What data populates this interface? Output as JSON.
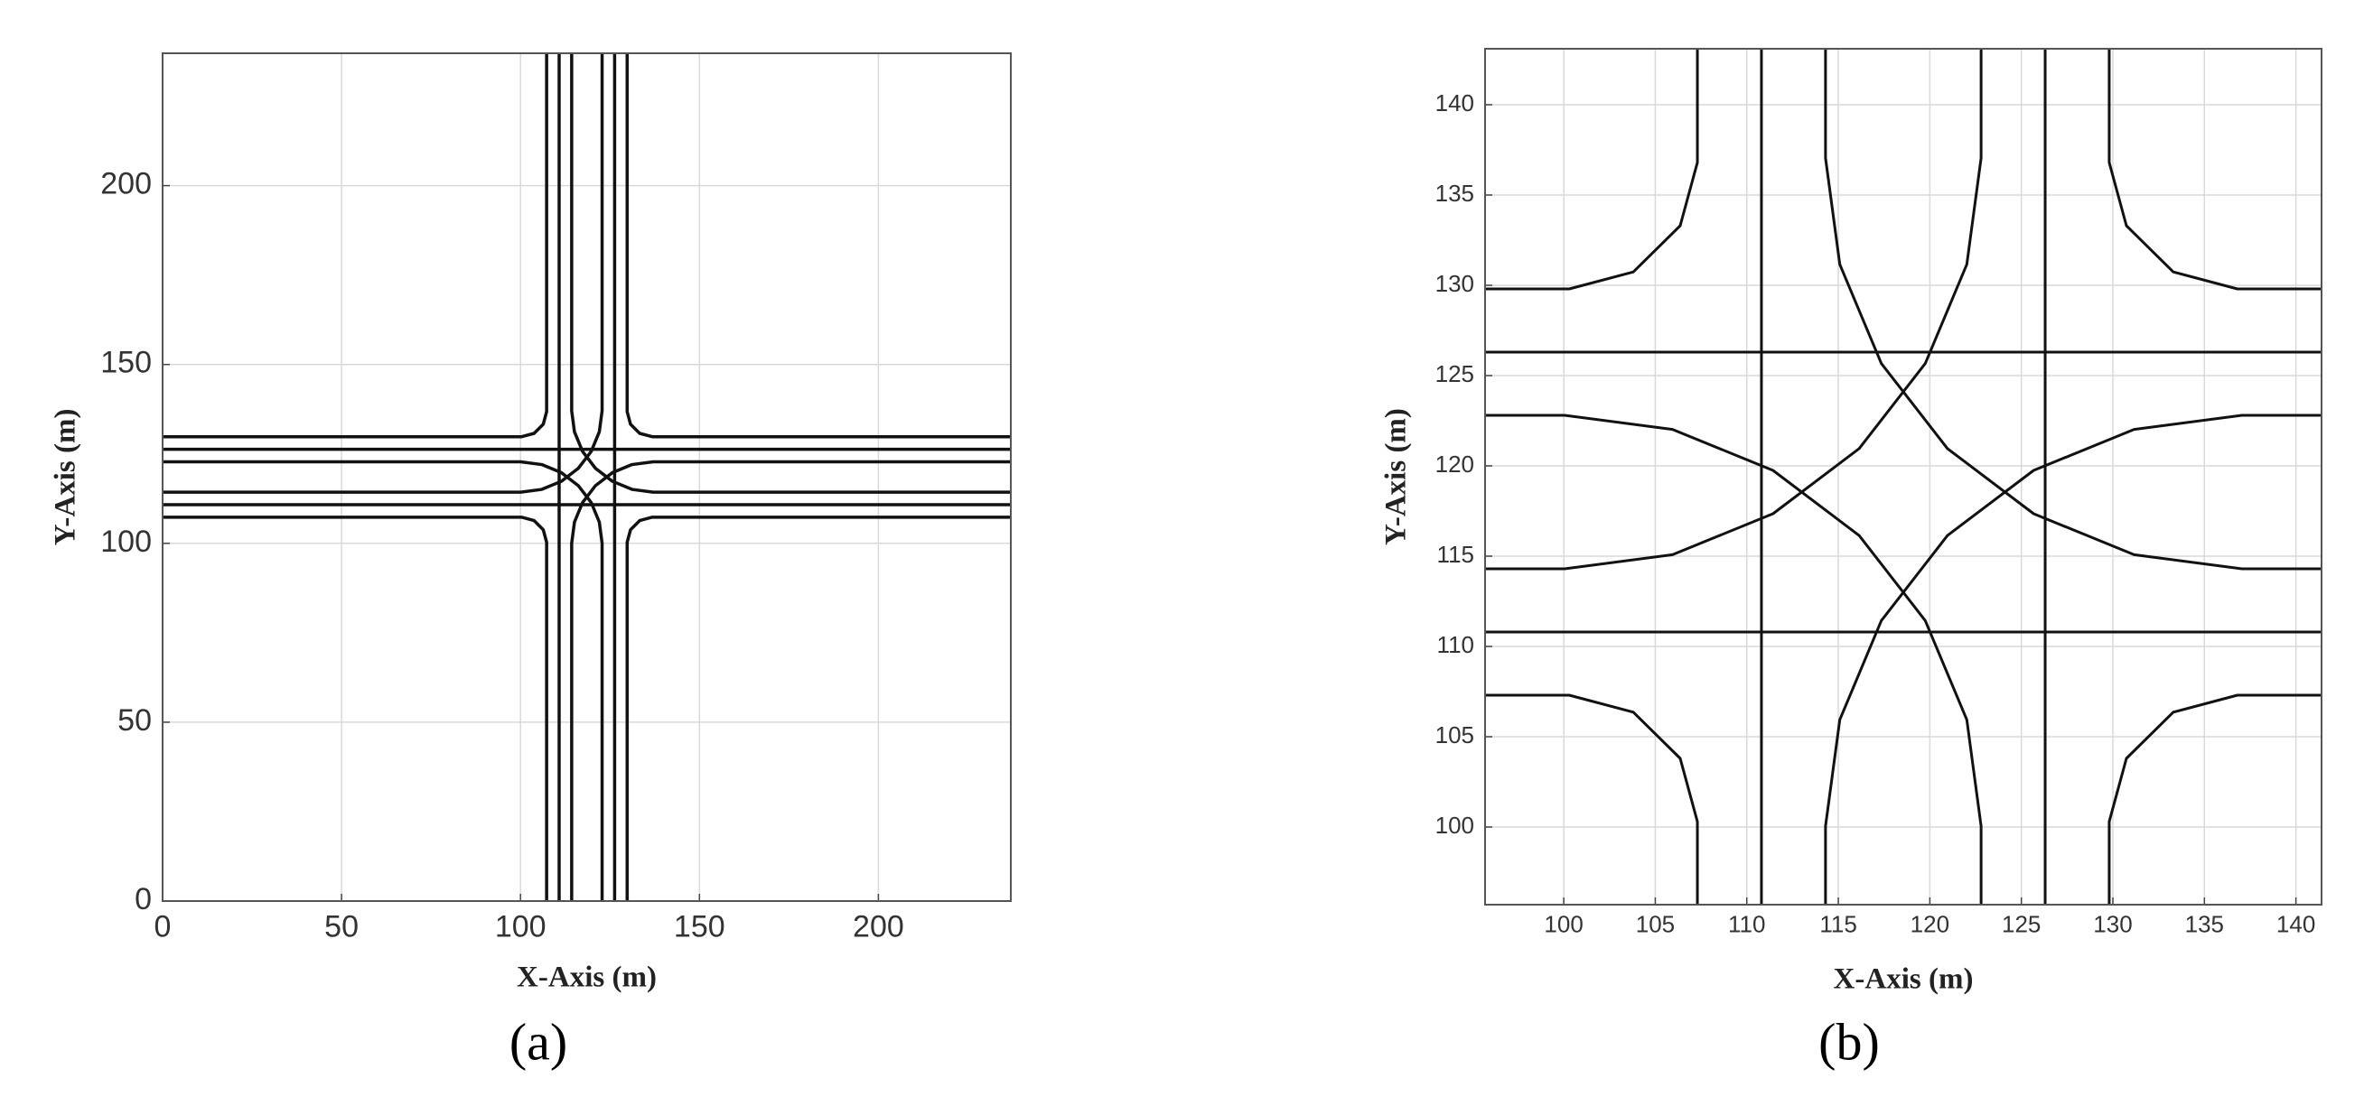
{
  "chart_data": [
    {
      "type": "line",
      "caption": "(a)",
      "xlabel": "X-Axis (m)",
      "ylabel": "Y-Axis (m)",
      "xlim": [
        0,
        237
      ],
      "ylim": [
        0,
        237
      ],
      "xticks": [
        0,
        50,
        100,
        150,
        200
      ],
      "yticks": [
        0,
        50,
        100,
        150,
        200
      ],
      "grid": true,
      "series": [
        {
          "color": "#111111",
          "x": [
            110.8,
            110.8
          ],
          "y": [
            0,
            237
          ]
        },
        {
          "color": "#111111",
          "x": [
            126.3,
            126.3
          ],
          "y": [
            0,
            237
          ]
        },
        {
          "color": "#111111",
          "x": [
            0,
            237
          ],
          "y": [
            110.8,
            110.8
          ]
        },
        {
          "color": "#111111",
          "x": [
            0,
            237
          ],
          "y": [
            126.3,
            126.3
          ]
        },
        {
          "color": "#111111",
          "x": [
            0,
            100.3,
            103.8,
            106.36,
            107.3,
            107.3
          ],
          "y": [
            107.3,
            107.3,
            106.36,
            103.8,
            100.3,
            0
          ]
        },
        {
          "color": "#111111",
          "x": [
            237,
            136.8,
            133.3,
            130.74,
            129.8,
            129.8
          ],
          "y": [
            107.3,
            107.3,
            106.36,
            103.8,
            100.3,
            0
          ]
        },
        {
          "color": "#111111",
          "x": [
            0,
            100.3,
            103.8,
            106.36,
            107.3,
            107.3
          ],
          "y": [
            129.8,
            129.8,
            130.74,
            133.3,
            136.8,
            237
          ]
        },
        {
          "color": "#111111",
          "x": [
            237,
            136.8,
            133.3,
            130.74,
            129.8,
            129.8
          ],
          "y": [
            129.8,
            129.8,
            130.74,
            133.3,
            136.8,
            237
          ]
        },
        {
          "color": "#111111",
          "x": [
            114.3,
            114.3,
            115.08,
            117.35,
            120.96,
            125.67,
            131.16,
            137.05,
            237
          ],
          "y": [
            0,
            100.05,
            105.94,
            111.43,
            116.14,
            119.75,
            122.02,
            122.8,
            122.8
          ]
        },
        {
          "color": "#111111",
          "x": [
            122.8,
            122.8,
            122.02,
            119.75,
            116.14,
            111.43,
            105.94,
            100.05,
            0
          ],
          "y": [
            0,
            100.05,
            105.94,
            111.43,
            116.14,
            119.75,
            122.02,
            122.8,
            122.8
          ]
        },
        {
          "color": "#111111",
          "x": [
            114.3,
            114.3,
            115.08,
            117.35,
            120.96,
            125.67,
            131.16,
            137.05,
            237
          ],
          "y": [
            237,
            137.05,
            131.16,
            125.67,
            120.96,
            117.35,
            115.08,
            114.3,
            114.3
          ]
        },
        {
          "color": "#111111",
          "x": [
            122.8,
            122.8,
            122.02,
            119.75,
            116.14,
            111.43,
            105.94,
            100.05,
            0
          ],
          "y": [
            237,
            137.05,
            131.16,
            125.67,
            120.96,
            117.35,
            115.08,
            114.3,
            114.3
          ]
        }
      ]
    },
    {
      "type": "line",
      "caption": "(b)",
      "xlabel": "X-Axis (m)",
      "ylabel": "Y-Axis (m)",
      "xlim": [
        95.7,
        141.4
      ],
      "ylim": [
        95.7,
        143.1
      ],
      "xticks": [
        100,
        105,
        110,
        115,
        120,
        125,
        130,
        135,
        140
      ],
      "yticks": [
        100,
        105,
        110,
        115,
        120,
        125,
        130,
        135,
        140
      ],
      "grid": true,
      "series": [
        {
          "color": "#111111",
          "x": [
            110.8,
            110.8
          ],
          "y": [
            95.7,
            143.1
          ]
        },
        {
          "color": "#111111",
          "x": [
            126.3,
            126.3
          ],
          "y": [
            95.7,
            143.1
          ]
        },
        {
          "color": "#111111",
          "x": [
            95.7,
            141.4
          ],
          "y": [
            110.8,
            110.8
          ]
        },
        {
          "color": "#111111",
          "x": [
            95.7,
            141.4
          ],
          "y": [
            126.3,
            126.3
          ]
        },
        {
          "color": "#111111",
          "x": [
            95.7,
            100.3,
            103.8,
            106.36,
            107.3,
            107.3
          ],
          "y": [
            107.3,
            107.3,
            106.36,
            103.8,
            100.3,
            95.7
          ]
        },
        {
          "color": "#111111",
          "x": [
            141.4,
            136.8,
            133.3,
            130.74,
            129.8,
            129.8
          ],
          "y": [
            107.3,
            107.3,
            106.36,
            103.8,
            100.3,
            95.7
          ]
        },
        {
          "color": "#111111",
          "x": [
            95.7,
            100.3,
            103.8,
            106.36,
            107.3,
            107.3
          ],
          "y": [
            129.8,
            129.8,
            130.74,
            133.3,
            136.8,
            143.1
          ]
        },
        {
          "color": "#111111",
          "x": [
            141.4,
            136.8,
            133.3,
            130.74,
            129.8,
            129.8
          ],
          "y": [
            129.8,
            129.8,
            130.74,
            133.3,
            136.8,
            143.1
          ]
        },
        {
          "color": "#111111",
          "x": [
            114.3,
            114.3,
            115.08,
            117.35,
            120.96,
            125.67,
            131.16,
            137.05,
            141.4
          ],
          "y": [
            95.7,
            100.05,
            105.94,
            111.43,
            116.14,
            119.75,
            122.02,
            122.8,
            122.8
          ]
        },
        {
          "color": "#111111",
          "x": [
            122.8,
            122.8,
            122.02,
            119.75,
            116.14,
            111.43,
            105.94,
            100.05,
            95.7
          ],
          "y": [
            95.7,
            100.05,
            105.94,
            111.43,
            116.14,
            119.75,
            122.02,
            122.8,
            122.8
          ]
        },
        {
          "color": "#111111",
          "x": [
            114.3,
            114.3,
            115.08,
            117.35,
            120.96,
            125.67,
            131.16,
            137.05,
            141.4
          ],
          "y": [
            143.1,
            137.05,
            131.16,
            125.67,
            120.96,
            117.35,
            115.08,
            114.3,
            114.3
          ]
        },
        {
          "color": "#111111",
          "x": [
            122.8,
            122.8,
            122.02,
            119.75,
            116.14,
            111.43,
            105.94,
            100.05,
            95.7
          ],
          "y": [
            143.1,
            137.05,
            131.16,
            125.67,
            120.96,
            117.35,
            115.08,
            114.3,
            114.3
          ]
        }
      ]
    }
  ]
}
